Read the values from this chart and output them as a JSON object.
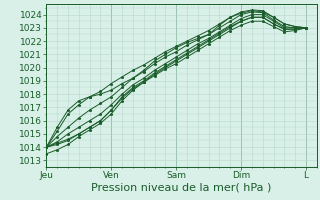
{
  "bg_color": "#d8f0e8",
  "plot_bg_color": "#d8f0e8",
  "grid_color_minor": "#b8d8cc",
  "grid_color_major": "#98c4b0",
  "line_color": "#1a5c2a",
  "xlabel": "Pression niveau de la mer( hPa )",
  "xlabel_fontsize": 8,
  "tick_fontsize": 6.5,
  "day_labels": [
    "Jeu",
    "Ven",
    "Sam",
    "Dim",
    "L"
  ],
  "day_positions": [
    0,
    24,
    48,
    72,
    96
  ],
  "ylim_min": 1012.5,
  "ylim_max": 1024.8,
  "yticks": [
    1013,
    1014,
    1015,
    1016,
    1017,
    1018,
    1019,
    1020,
    1021,
    1022,
    1023,
    1024
  ],
  "xlim_min": 0,
  "xlim_max": 100,
  "lines": [
    [
      0,
      1014.0,
      4,
      1015.5,
      8,
      1016.8,
      12,
      1017.5,
      16,
      1017.8,
      20,
      1018.0,
      24,
      1018.3,
      28,
      1018.8,
      32,
      1019.2,
      36,
      1019.8,
      40,
      1020.5,
      44,
      1021.0,
      48,
      1021.5,
      52,
      1021.9,
      56,
      1022.2,
      60,
      1022.5,
      64,
      1023.2,
      68,
      1023.8,
      72,
      1024.2,
      76,
      1024.35,
      80,
      1024.3,
      84,
      1023.8,
      88,
      1023.3,
      92,
      1023.1,
      96,
      1023.0
    ],
    [
      0,
      1014.0,
      4,
      1014.8,
      8,
      1015.5,
      12,
      1016.2,
      16,
      1016.8,
      20,
      1017.3,
      24,
      1017.8,
      28,
      1018.5,
      32,
      1019.2,
      36,
      1019.7,
      40,
      1020.3,
      44,
      1020.8,
      48,
      1021.2,
      52,
      1021.7,
      56,
      1022.1,
      60,
      1022.5,
      64,
      1023.0,
      68,
      1023.5,
      72,
      1024.0,
      76,
      1024.2,
      80,
      1024.15,
      84,
      1023.6,
      88,
      1023.1,
      92,
      1023.0,
      96,
      1023.0
    ],
    [
      0,
      1014.0,
      4,
      1014.4,
      8,
      1015.0,
      12,
      1015.5,
      16,
      1016.0,
      20,
      1016.5,
      24,
      1017.2,
      28,
      1018.0,
      32,
      1018.7,
      36,
      1019.2,
      40,
      1019.8,
      44,
      1020.3,
      48,
      1020.8,
      52,
      1021.3,
      56,
      1021.8,
      60,
      1022.2,
      64,
      1022.7,
      68,
      1023.2,
      72,
      1023.7,
      76,
      1024.0,
      80,
      1024.0,
      84,
      1023.5,
      88,
      1023.0,
      92,
      1023.0,
      96,
      1023.0
    ],
    [
      0,
      1014.0,
      4,
      1014.2,
      8,
      1014.5,
      12,
      1015.0,
      16,
      1015.5,
      20,
      1016.0,
      24,
      1016.8,
      28,
      1017.8,
      32,
      1018.5,
      36,
      1019.0,
      40,
      1019.6,
      44,
      1020.1,
      48,
      1020.6,
      52,
      1021.1,
      56,
      1021.6,
      60,
      1022.1,
      64,
      1022.6,
      68,
      1023.1,
      72,
      1023.5,
      76,
      1023.8,
      80,
      1023.8,
      84,
      1023.3,
      88,
      1022.9,
      92,
      1022.9,
      96,
      1023.0
    ],
    [
      0,
      1014.0,
      4,
      1015.2,
      8,
      1016.5,
      12,
      1017.2,
      16,
      1017.8,
      20,
      1018.2,
      24,
      1018.8,
      28,
      1019.3,
      32,
      1019.8,
      36,
      1020.2,
      40,
      1020.7,
      44,
      1021.2,
      48,
      1021.6,
      52,
      1022.0,
      56,
      1022.4,
      60,
      1022.8,
      64,
      1023.3,
      68,
      1023.8,
      72,
      1024.1,
      76,
      1024.3,
      80,
      1024.2,
      84,
      1023.8,
      88,
      1023.3,
      92,
      1023.1,
      96,
      1023.0
    ],
    [
      0,
      1014.0,
      4,
      1014.3,
      8,
      1014.6,
      12,
      1015.0,
      16,
      1015.5,
      20,
      1016.0,
      24,
      1016.8,
      28,
      1017.7,
      32,
      1018.4,
      36,
      1018.9,
      40,
      1019.4,
      44,
      1019.9,
      48,
      1020.3,
      52,
      1020.8,
      56,
      1021.3,
      60,
      1021.8,
      64,
      1022.3,
      68,
      1022.8,
      72,
      1023.2,
      76,
      1023.5,
      80,
      1023.5,
      84,
      1023.1,
      88,
      1022.7,
      92,
      1022.8,
      96,
      1023.0
    ],
    [
      0,
      1013.5,
      4,
      1013.8,
      8,
      1014.2,
      12,
      1014.8,
      16,
      1015.3,
      20,
      1015.8,
      24,
      1016.5,
      28,
      1017.5,
      32,
      1018.3,
      36,
      1018.9,
      40,
      1019.5,
      44,
      1020.0,
      48,
      1020.5,
      52,
      1021.0,
      56,
      1021.5,
      60,
      1022.0,
      64,
      1022.5,
      68,
      1023.0,
      72,
      1023.5,
      76,
      1023.8,
      80,
      1023.8,
      84,
      1023.3,
      88,
      1022.9,
      92,
      1022.9,
      96,
      1023.0
    ]
  ]
}
